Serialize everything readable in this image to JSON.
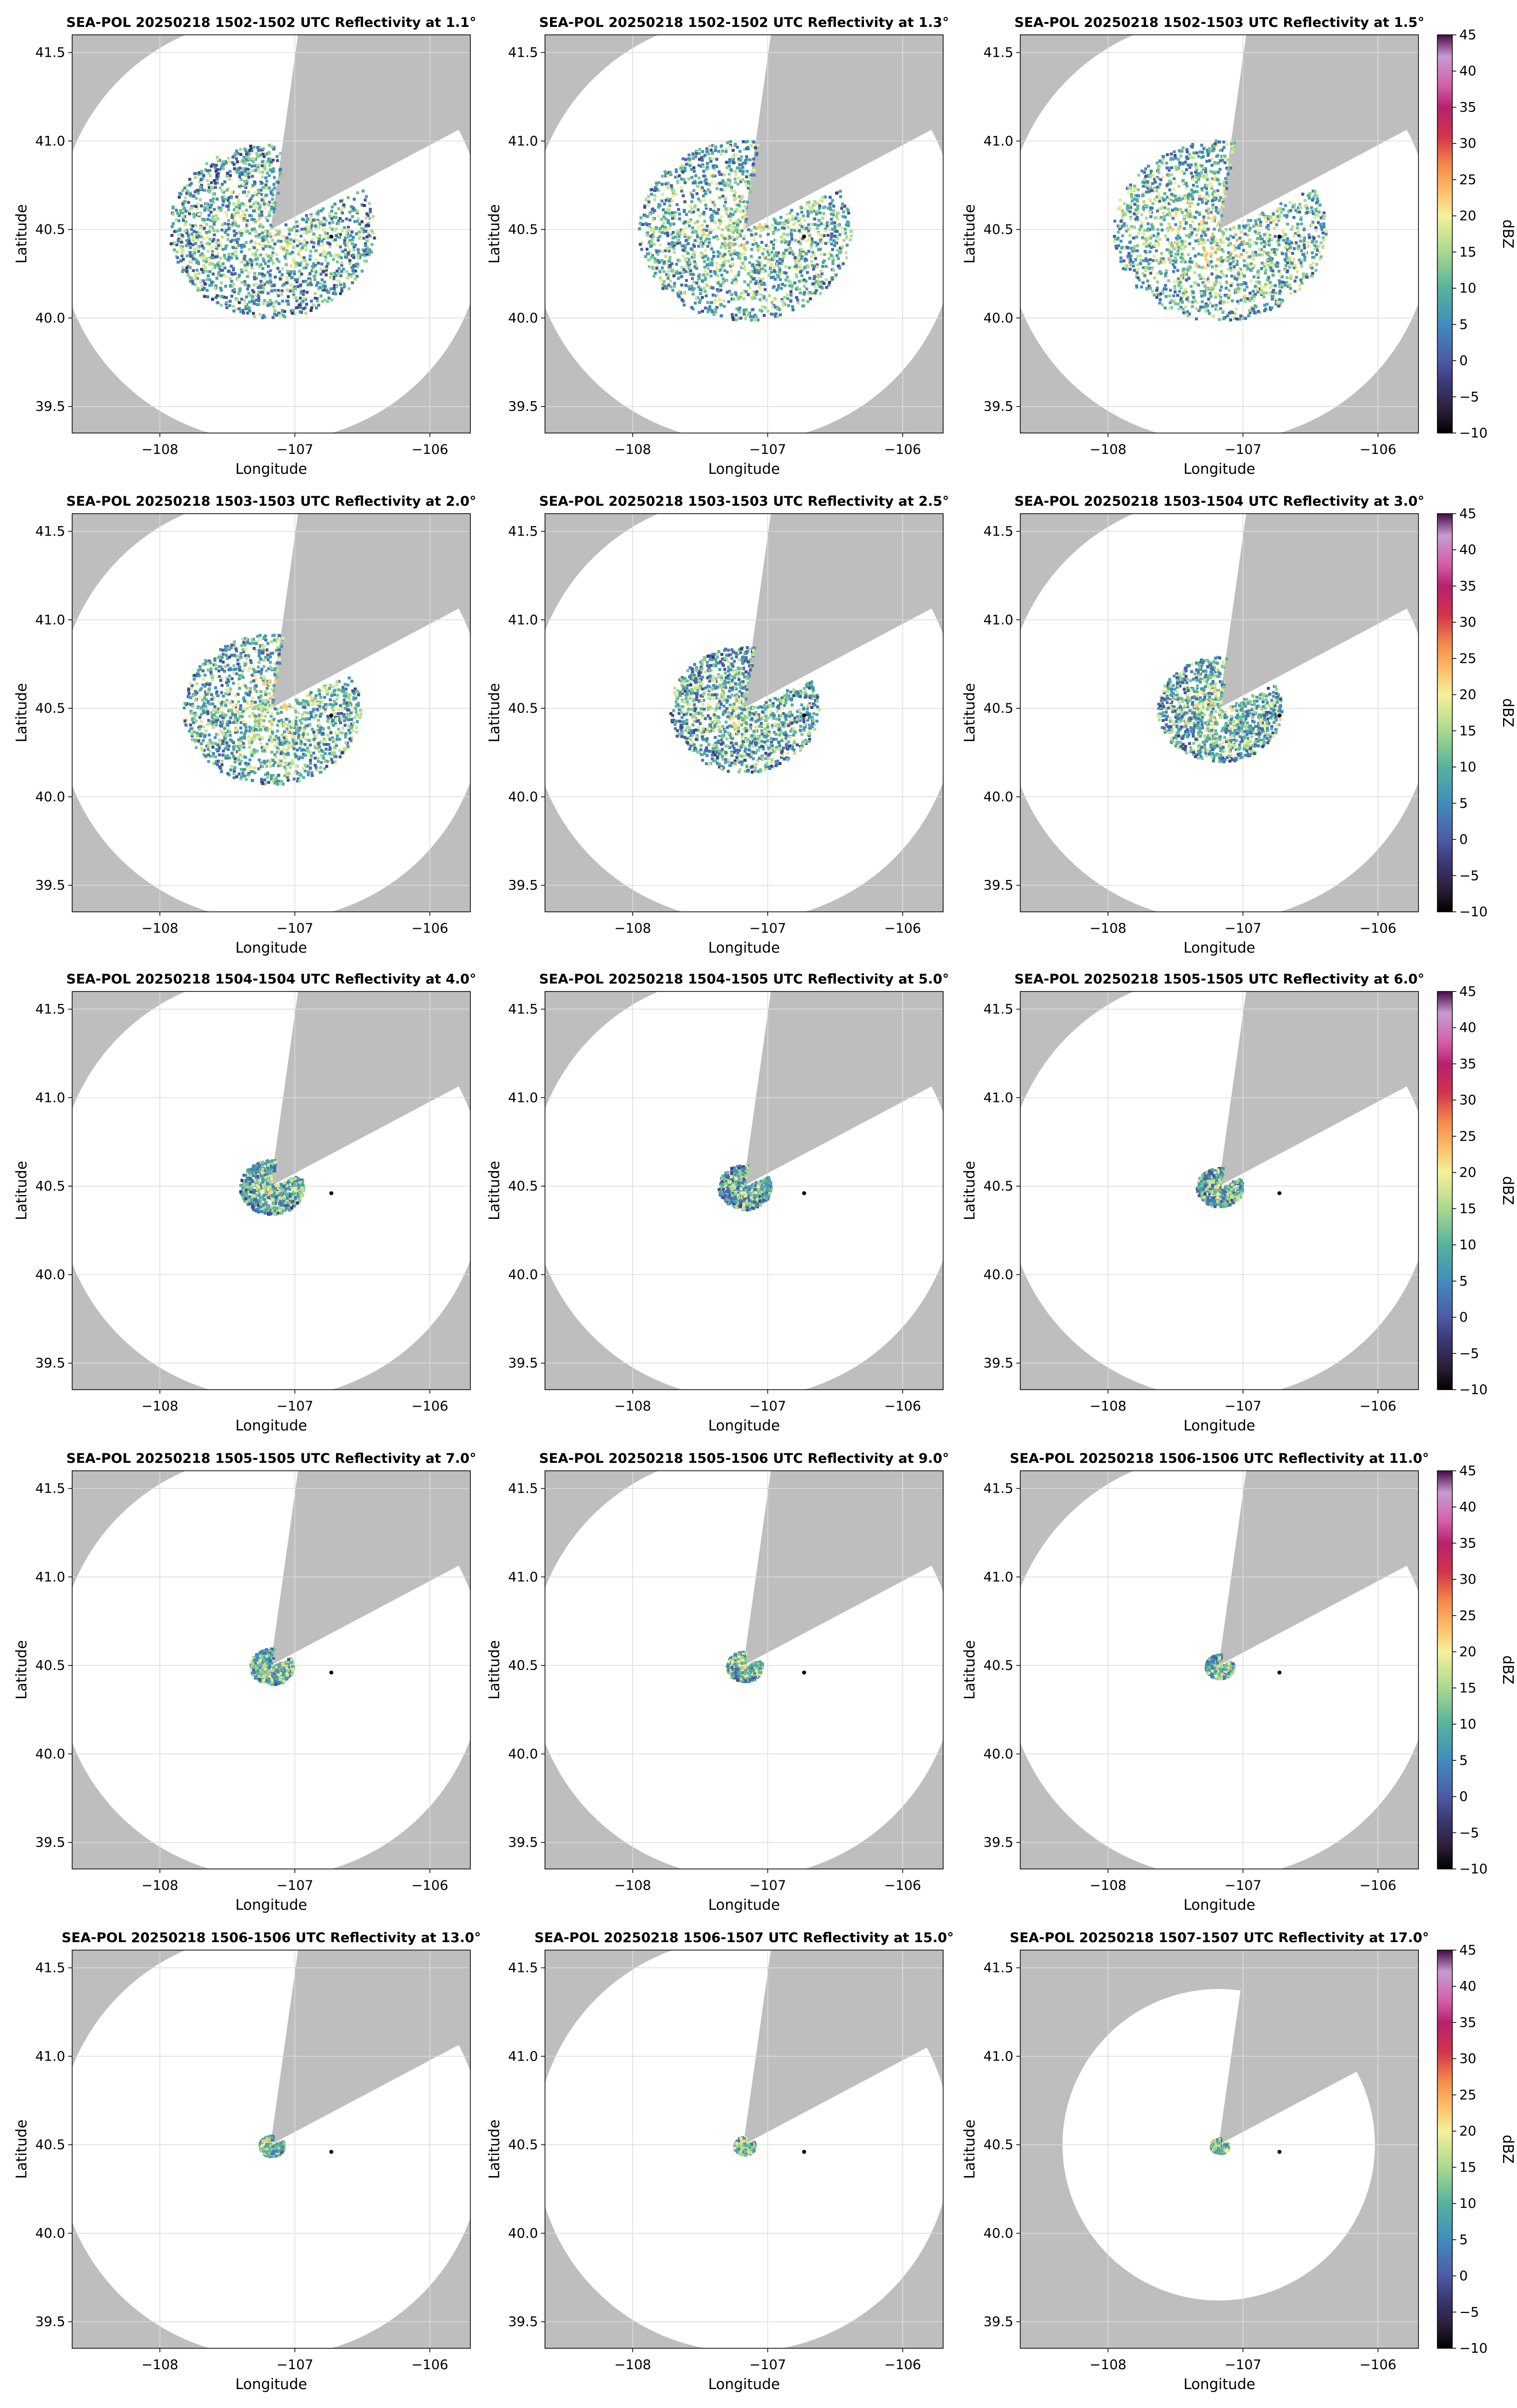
{
  "figure": {
    "background": "#ffffff"
  },
  "style": {
    "masked_color": "#bebebe",
    "axes_bg": "#ffffff",
    "grid_color": "#dcdcdc",
    "radar_marker_color": "#000000"
  },
  "chart_data": {
    "type": "heatmap",
    "layout": {
      "rows": 5,
      "cols": 3
    },
    "xlabel": "Longitude",
    "ylabel": "Latitude",
    "xlim": [
      -108.65,
      -105.7
    ],
    "ylim": [
      39.35,
      41.6
    ],
    "xticks": [
      -108,
      -107,
      -106
    ],
    "xtick_labels": [
      "−108",
      "−107",
      "−106"
    ],
    "yticks": [
      39.5,
      40.0,
      40.5,
      41.0,
      41.5
    ],
    "ytick_labels": [
      "39.5",
      "40.0",
      "40.5",
      "41.0",
      "41.5"
    ],
    "grid": true,
    "radar_site": {
      "lon": -107.18,
      "lat": 40.5
    },
    "marker_point": {
      "lon": -106.73,
      "lat": 40.46
    },
    "colorbar": {
      "label": "dBZ",
      "range": [
        -10,
        45
      ],
      "ticks": [
        -10,
        -5,
        0,
        5,
        10,
        15,
        20,
        25,
        30,
        35,
        40,
        45
      ],
      "tick_labels": [
        "−10",
        "−5",
        "0",
        "5",
        "10",
        "15",
        "20",
        "25",
        "30",
        "35",
        "40",
        "45"
      ],
      "colormap": [
        {
          "v": -10,
          "c": "#000000"
        },
        {
          "v": -7,
          "c": "#2b1d36"
        },
        {
          "v": -3,
          "c": "#3b3a77"
        },
        {
          "v": 0,
          "c": "#4e5aa6"
        },
        {
          "v": 5,
          "c": "#3f8dbd"
        },
        {
          "v": 10,
          "c": "#55b39c"
        },
        {
          "v": 15,
          "c": "#a9d98d"
        },
        {
          "v": 20,
          "c": "#f4f09b"
        },
        {
          "v": 23,
          "c": "#fcc46d"
        },
        {
          "v": 27,
          "c": "#f48a4a"
        },
        {
          "v": 31,
          "c": "#d2334a"
        },
        {
          "v": 35,
          "c": "#b8216e"
        },
        {
          "v": 38,
          "c": "#d35fa6"
        },
        {
          "v": 42,
          "c": "#c79bd3"
        },
        {
          "v": 45,
          "c": "#4a0a47"
        }
      ]
    },
    "panels": [
      {
        "title": "SEA-POL 20250218 1502-1502 UTC Reflectivity at 1.1°",
        "elevation_deg": 1.1,
        "range_deg_lat": 1.2,
        "echo_radius_deg": 0.58,
        "mean_dbz": 13
      },
      {
        "title": "SEA-POL 20250218 1502-1502 UTC Reflectivity at 1.3°",
        "elevation_deg": 1.3,
        "range_deg_lat": 1.2,
        "echo_radius_deg": 0.6,
        "mean_dbz": 14
      },
      {
        "title": "SEA-POL 20250218 1502-1503 UTC Reflectivity at 1.5°",
        "elevation_deg": 1.5,
        "range_deg_lat": 1.2,
        "echo_radius_deg": 0.6,
        "mean_dbz": 15
      },
      {
        "title": "SEA-POL 20250218 1503-1503 UTC Reflectivity at 2.0°",
        "elevation_deg": 2.0,
        "range_deg_lat": 1.2,
        "echo_radius_deg": 0.5,
        "mean_dbz": 14
      },
      {
        "title": "SEA-POL 20250218 1503-1503 UTC Reflectivity at 2.5°",
        "elevation_deg": 2.5,
        "range_deg_lat": 1.2,
        "echo_radius_deg": 0.42,
        "mean_dbz": 13
      },
      {
        "title": "SEA-POL 20250218 1503-1504 UTC Reflectivity at 3.0°",
        "elevation_deg": 3.0,
        "range_deg_lat": 1.2,
        "echo_radius_deg": 0.35,
        "mean_dbz": 14
      },
      {
        "title": "SEA-POL 20250218 1504-1504 UTC Reflectivity at 4.0°",
        "elevation_deg": 4.0,
        "range_deg_lat": 1.2,
        "echo_radius_deg": 0.18,
        "mean_dbz": 13
      },
      {
        "title": "SEA-POL 20250218 1504-1505 UTC Reflectivity at 5.0°",
        "elevation_deg": 5.0,
        "range_deg_lat": 1.2,
        "echo_radius_deg": 0.15,
        "mean_dbz": 13
      },
      {
        "title": "SEA-POL 20250218 1505-1505 UTC Reflectivity at 6.0°",
        "elevation_deg": 6.0,
        "range_deg_lat": 1.2,
        "echo_radius_deg": 0.13,
        "mean_dbz": 13
      },
      {
        "title": "SEA-POL 20250218 1505-1505 UTC Reflectivity at 7.0°",
        "elevation_deg": 7.0,
        "range_deg_lat": 1.2,
        "echo_radius_deg": 0.12,
        "mean_dbz": 15
      },
      {
        "title": "SEA-POL 20250218 1505-1506 UTC Reflectivity at 9.0°",
        "elevation_deg": 9.0,
        "range_deg_lat": 1.2,
        "echo_radius_deg": 0.1,
        "mean_dbz": 15
      },
      {
        "title": "SEA-POL 20250218 1506-1506 UTC Reflectivity at 11.0°",
        "elevation_deg": 11.0,
        "range_deg_lat": 1.2,
        "echo_radius_deg": 0.08,
        "mean_dbz": 15
      },
      {
        "title": "SEA-POL 20250218 1506-1506 UTC Reflectivity at 13.0°",
        "elevation_deg": 13.0,
        "range_deg_lat": 1.2,
        "echo_radius_deg": 0.07,
        "mean_dbz": 16
      },
      {
        "title": "SEA-POL 20250218 1506-1507 UTC Reflectivity at 15.0°",
        "elevation_deg": 15.0,
        "range_deg_lat": 1.17,
        "echo_radius_deg": 0.06,
        "mean_dbz": 16
      },
      {
        "title": "SEA-POL 20250218 1507-1507 UTC Reflectivity at 17.0°",
        "elevation_deg": 17.0,
        "range_deg_lat": 0.88,
        "echo_radius_deg": 0.05,
        "mean_dbz": 16
      }
    ]
  }
}
